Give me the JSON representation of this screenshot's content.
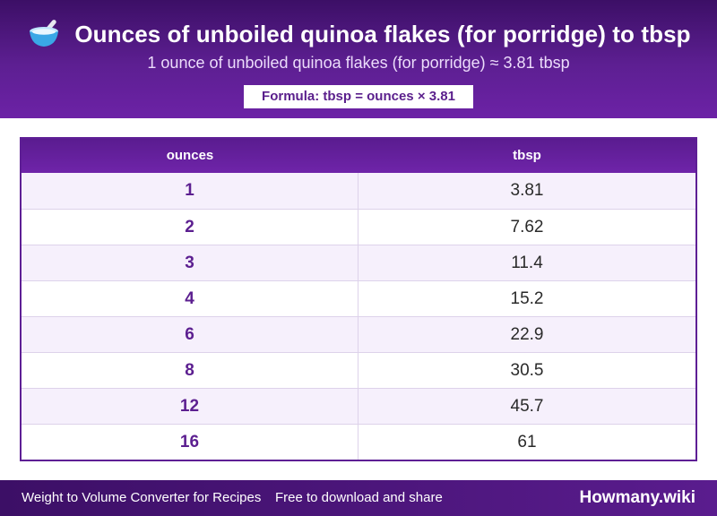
{
  "header": {
    "icon": "bowl-with-spoon-icon",
    "title": "Ounces of unboiled quinoa flakes (for porridge) to tbsp",
    "subtitle": "1 ounce of unboiled quinoa flakes (for porridge) ≈ 3.81 tbsp",
    "formula": "Formula: tbsp = ounces × 3.81"
  },
  "table": {
    "headers": [
      "ounces",
      "tbsp"
    ],
    "rows": [
      {
        "ounces": "1",
        "tbsp": "3.81"
      },
      {
        "ounces": "2",
        "tbsp": "7.62"
      },
      {
        "ounces": "3",
        "tbsp": "11.4"
      },
      {
        "ounces": "4",
        "tbsp": "15.2"
      },
      {
        "ounces": "6",
        "tbsp": "22.9"
      },
      {
        "ounces": "8",
        "tbsp": "30.5"
      },
      {
        "ounces": "12",
        "tbsp": "45.7"
      },
      {
        "ounces": "16",
        "tbsp": "61"
      }
    ]
  },
  "footer": {
    "left": "Weight to Volume Converter for Recipes",
    "middle": "Free to download and share",
    "brand": "Howmany.wiki"
  },
  "colors": {
    "primary": "#5e1f95",
    "header_dark": "#3c0f66",
    "row_alt": "#f6f0fc",
    "bowl": "#3aa7e6"
  }
}
